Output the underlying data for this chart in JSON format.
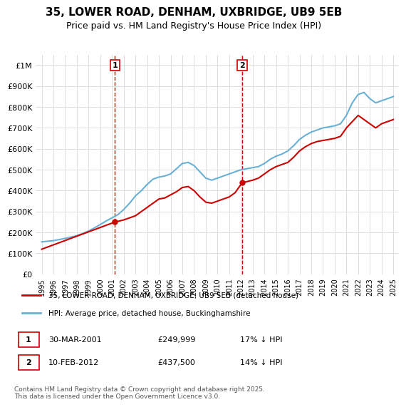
{
  "title": "35, LOWER ROAD, DENHAM, UXBRIDGE, UB9 5EB",
  "subtitle": "Price paid vs. HM Land Registry's House Price Index (HPI)",
  "label_red": "35, LOWER ROAD, DENHAM, UXBRIDGE, UB9 5EB (detached house)",
  "label_blue": "HPI: Average price, detached house, Buckinghamshire",
  "footnote": "Contains HM Land Registry data © Crown copyright and database right 2025.\nThis data is licensed under the Open Government Licence v3.0.",
  "sale1_label": "1",
  "sale1_date": "30-MAR-2001",
  "sale1_price": "£249,999",
  "sale1_hpi": "17% ↓ HPI",
  "sale2_label": "2",
  "sale2_date": "10-FEB-2012",
  "sale2_price": "£437,500",
  "sale2_hpi": "14% ↓ HPI",
  "marker1_x": 2001.25,
  "marker1_y": 249999,
  "marker2_x": 2012.1,
  "marker2_y": 437500,
  "ylim": [
    0,
    1050000
  ],
  "xlim": [
    1994.5,
    2025.5
  ],
  "color_red": "#cc0000",
  "color_blue": "#6ab0d4",
  "color_vline": "#cc0000",
  "background_plot": "#ffffff",
  "background_fig": "#ffffff",
  "grid_color": "#dddddd",
  "yticks": [
    0,
    100000,
    200000,
    300000,
    400000,
    500000,
    600000,
    700000,
    800000,
    900000,
    1000000
  ],
  "ytick_labels": [
    "£0",
    "£100K",
    "£200K",
    "£300K",
    "£400K",
    "£500K",
    "£600K",
    "£700K",
    "£800K",
    "£900K",
    "£1M"
  ],
  "xticks": [
    1995,
    1996,
    1997,
    1998,
    1999,
    2000,
    2001,
    2002,
    2003,
    2004,
    2005,
    2006,
    2007,
    2008,
    2009,
    2010,
    2011,
    2012,
    2013,
    2014,
    2015,
    2016,
    2017,
    2018,
    2019,
    2020,
    2021,
    2022,
    2023,
    2024,
    2025
  ],
  "hpi_x": [
    1995,
    1995.5,
    1996,
    1996.5,
    1997,
    1997.5,
    1998,
    1998.5,
    1999,
    1999.5,
    2000,
    2000.5,
    2001,
    2001.5,
    2002,
    2002.5,
    2003,
    2003.5,
    2004,
    2004.5,
    2005,
    2005.5,
    2006,
    2006.5,
    2007,
    2007.5,
    2008,
    2008.5,
    2009,
    2009.5,
    2010,
    2010.5,
    2011,
    2011.5,
    2012,
    2012.5,
    2013,
    2013.5,
    2014,
    2014.5,
    2015,
    2015.5,
    2016,
    2016.5,
    2017,
    2017.5,
    2018,
    2018.5,
    2019,
    2019.5,
    2020,
    2020.5,
    2021,
    2021.5,
    2022,
    2022.5,
    2023,
    2023.5,
    2024,
    2024.5,
    2025
  ],
  "hpi_y": [
    155000,
    158000,
    161000,
    166000,
    172000,
    178000,
    185000,
    195000,
    207000,
    222000,
    238000,
    255000,
    270000,
    285000,
    310000,
    340000,
    375000,
    400000,
    430000,
    455000,
    465000,
    470000,
    480000,
    505000,
    530000,
    535000,
    520000,
    490000,
    460000,
    450000,
    460000,
    470000,
    480000,
    490000,
    500000,
    505000,
    510000,
    515000,
    530000,
    550000,
    565000,
    575000,
    590000,
    615000,
    645000,
    665000,
    680000,
    690000,
    700000,
    705000,
    710000,
    720000,
    760000,
    820000,
    860000,
    870000,
    840000,
    820000,
    830000,
    840000,
    850000
  ],
  "red_x": [
    1995,
    2001.25,
    2002,
    2003,
    2004,
    2005,
    2005.5,
    2006,
    2006.5,
    2007,
    2007.5,
    2008,
    2008.5,
    2009,
    2009.5,
    2010,
    2010.5,
    2011,
    2011.5,
    2012.1,
    2013,
    2013.5,
    2014,
    2014.5,
    2015,
    2015.5,
    2016,
    2016.5,
    2017,
    2017.5,
    2018,
    2018.5,
    2019,
    2019.5,
    2020,
    2020.5,
    2021,
    2022,
    2023,
    2023.5,
    2024,
    2024.5,
    2025
  ],
  "red_y": [
    120000,
    249999,
    260000,
    280000,
    320000,
    360000,
    365000,
    380000,
    395000,
    415000,
    420000,
    400000,
    370000,
    345000,
    340000,
    350000,
    360000,
    370000,
    390000,
    437500,
    450000,
    460000,
    480000,
    500000,
    515000,
    525000,
    535000,
    560000,
    590000,
    610000,
    625000,
    635000,
    640000,
    645000,
    650000,
    660000,
    700000,
    760000,
    720000,
    700000,
    720000,
    730000,
    740000
  ]
}
